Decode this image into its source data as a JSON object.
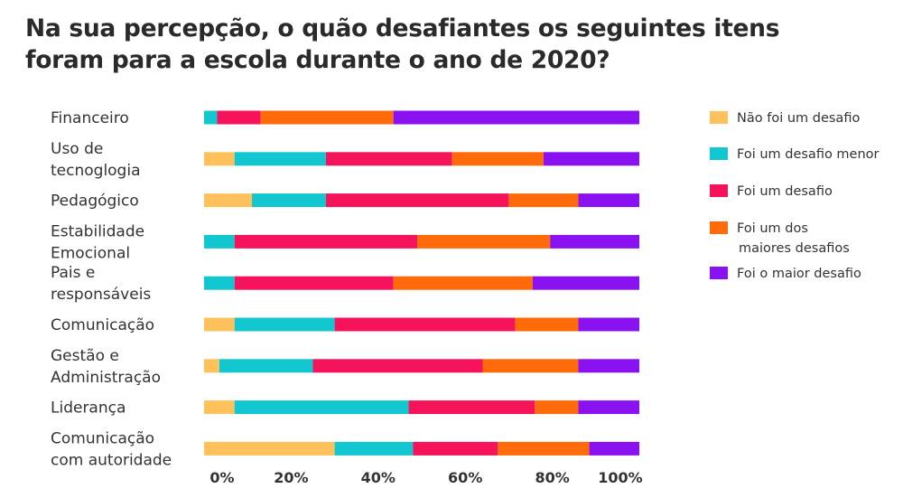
{
  "chart_data": {
    "type": "bar",
    "orientation": "horizontal",
    "stacked": true,
    "title_lines": [
      "Na sua percepção, o quão desafiantes os seguintes itens",
      "foram para a escola durante o ano de 2020?"
    ],
    "categories": [
      [
        "Financeiro"
      ],
      [
        "Uso de",
        "tecnoglogia"
      ],
      [
        "Pedagógico"
      ],
      [
        "Estabilidade",
        "Emocional"
      ],
      [
        "Pais e",
        "responsáveis"
      ],
      [
        "Comunicação"
      ],
      [
        "Gestão e",
        "Administração"
      ],
      [
        "Liderança"
      ],
      [
        "Comunicação",
        "com autoridade"
      ]
    ],
    "series": [
      {
        "name": "Não foi um desafio",
        "legend_lines": [
          "Não foi um desafio"
        ],
        "color": "#FFC15C",
        "values": [
          0,
          7,
          11,
          0,
          0,
          7,
          3.5,
          7,
          30
        ]
      },
      {
        "name": "Foi um desafio menor",
        "legend_lines": [
          "Foi um desafio menor"
        ],
        "color": "#12C7CF",
        "values": [
          3,
          21,
          17,
          7,
          7,
          23,
          21.5,
          40,
          18
        ]
      },
      {
        "name": "Foi um desafio",
        "legend_lines": [
          "Foi um desafio"
        ],
        "color": "#F5135B",
        "values": [
          10,
          29,
          42,
          42,
          36.5,
          41.5,
          39,
          29,
          19.5
        ]
      },
      {
        "name": "Foi um dos maiores desafios",
        "legend_lines": [
          "Foi um dos",
          "maiores desafios"
        ],
        "color": "#FF6A0A",
        "values": [
          30.5,
          21,
          16,
          30.5,
          32,
          14.5,
          22,
          10,
          21
        ]
      },
      {
        "name": "Foi o maior desafio",
        "legend_lines": [
          "Foi o maior desafio"
        ],
        "color": "#8B12F0",
        "values": [
          56.5,
          22,
          14,
          20.5,
          24.5,
          14,
          14,
          14,
          11.5
        ]
      }
    ],
    "x_ticks": [
      "0%",
      "20%",
      "40%",
      "60%",
      "80%",
      "100%"
    ],
    "xlim": [
      0,
      100
    ],
    "grid": false,
    "legend_position": "right"
  }
}
